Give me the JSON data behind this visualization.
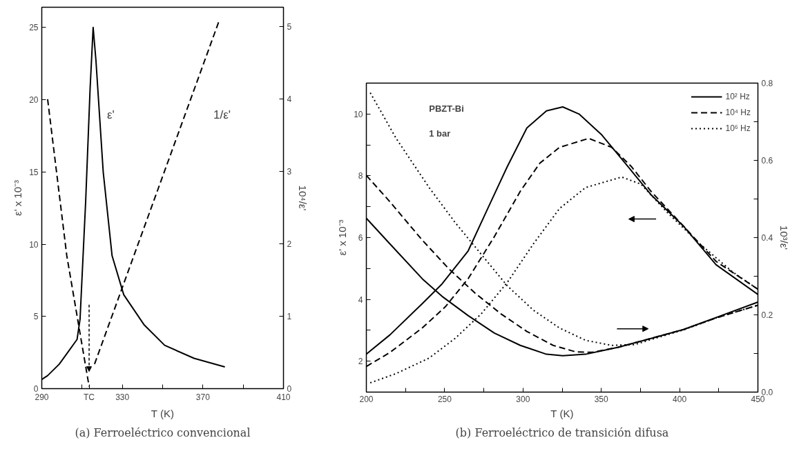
{
  "chart_data": [
    {
      "type": "line",
      "title": "(a) Ferroeléctrico convencional",
      "xlabel": "T (K)",
      "ylabel": "ε' x 10⁻³",
      "y2label": "10⁴/ε'",
      "xlim": [
        290,
        410
      ],
      "xticks": [
        290,
        {
          "value": 313.5,
          "label": "TC"
        },
        330,
        370,
        410,
        {
          "value": 310,
          "label": null
        },
        {
          "value": 350,
          "label": null
        },
        {
          "value": 390,
          "label": null
        }
      ],
      "ylim": [
        0,
        26.4
      ],
      "yticks": [
        0,
        5,
        10,
        15,
        20,
        25
      ],
      "y2lim": [
        0,
        5.27
      ],
      "y2ticks": [
        0,
        1,
        2,
        3,
        4,
        5
      ],
      "grid": false,
      "legend": false,
      "marker": "none",
      "series": [
        {
          "color": "#000000",
          "line_style": "solid",
          "x": [
            290,
            292.9,
            298.7,
            307.5,
            309,
            311.8,
            314,
            315.5,
            316.9,
            320.5,
            324.9,
            330.7,
            340.9,
            351,
            365.6,
            380.9
          ],
          "values": [
            0.64,
            0.9,
            1.7,
            3.4,
            4.8,
            13,
            20.8,
            25,
            22.7,
            15,
            9.2,
            6.5,
            4.4,
            3.0,
            2.1,
            1.5
          ]
        },
        {
          "color": "#000000",
          "line_style": "dashed",
          "axis": "y2",
          "x": [
            292.9,
            302.4,
            313.5,
            315,
            316.2,
            378
          ],
          "values": [
            4.0,
            1.84,
            0.03,
            null,
            0.34,
            5.08
          ]
        }
      ],
      "annotations": [
        "ε'",
        "1/ε'"
      ]
    },
    {
      "type": "line",
      "title": "(b) Ferroeléctrico de transición difusa",
      "xlabel": "T (K)",
      "ylabel": "ε' x 10⁻³",
      "y2label": "10³/ε'",
      "xlim": [
        200,
        450
      ],
      "xticks": [
        200,
        250,
        300,
        350,
        400,
        450,
        {
          "value": 225,
          "label": null
        },
        {
          "value": 275,
          "label": null
        },
        {
          "value": 325,
          "label": null
        },
        {
          "value": 375,
          "label": null
        },
        {
          "value": 425,
          "label": null
        }
      ],
      "ylim": [
        1,
        11
      ],
      "yticks": [
        2,
        4,
        6,
        8,
        10,
        {
          "value": 3,
          "label": null
        },
        {
          "value": 5,
          "label": null
        },
        {
          "value": 7,
          "label": null
        },
        {
          "value": 9,
          "label": null
        }
      ],
      "y2lim": [
        0,
        0.8
      ],
      "y2ticks": [
        {
          "value": 0,
          "label": "0.0"
        },
        0.2,
        0.4,
        0.6,
        0.8,
        {
          "value": 0.1,
          "label": null
        },
        {
          "value": 0.3,
          "label": null
        },
        {
          "value": 0.5,
          "label": null
        },
        {
          "value": 0.7,
          "label": null
        }
      ],
      "grid": false,
      "legend": "top right",
      "marker": "none",
      "series": [
        {
          "name": "10² Hz",
          "color": "#000000",
          "line_style": "solid",
          "x": [
            200,
            215,
            235.8,
            248.3,
            265,
            277.5,
            290,
            302.5,
            315,
            325.4,
            335.8,
            350.4,
            367,
            381.7,
            402.5,
            423.3,
            450
          ],
          "values": [
            2.23,
            2.85,
            3.87,
            4.5,
            5.57,
            6.94,
            8.3,
            9.55,
            10.1,
            10.23,
            10.0,
            9.32,
            8.3,
            7.39,
            6.37,
            5.12,
            4.16
          ]
        },
        {
          "name": "10⁴ Hz",
          "color": "#000000",
          "line_style": "dashed",
          "x": [
            200,
            215,
            235.8,
            250.4,
            265,
            281.7,
            298.3,
            310.8,
            323.3,
            342,
            356.7,
            369.2,
            381.7,
            402.5,
            423.3,
            450
          ],
          "values": [
            1.83,
            2.28,
            3.08,
            3.76,
            4.67,
            6.03,
            7.5,
            8.41,
            8.92,
            9.21,
            8.92,
            8.3,
            7.5,
            6.37,
            5.23,
            4.33
          ]
        },
        {
          "name": "10⁶ Hz",
          "color": "#000000",
          "line_style": "dotted",
          "x": [
            202.5,
            219,
            240,
            256.7,
            273.3,
            290,
            306.7,
            323.3,
            340,
            363,
            375.4,
            392,
            412.9,
            433.8,
            450
          ],
          "values": [
            1.3,
            1.6,
            2.1,
            2.74,
            3.53,
            4.55,
            5.8,
            6.94,
            7.62,
            7.96,
            7.73,
            6.82,
            5.8,
            4.89,
            4.33
          ]
        },
        {
          "color": "#000000",
          "line_style": "solid",
          "axis": "y2",
          "x": [
            200,
            215,
            235.8,
            248.3,
            265,
            281.7,
            298.3,
            315,
            325.4,
            340,
            360.8,
            381.7,
            402.5,
            423.3,
            450
          ],
          "values": [
            0.45,
            0.384,
            0.293,
            0.248,
            0.198,
            0.153,
            0.121,
            0.098,
            0.094,
            0.098,
            0.116,
            0.139,
            0.162,
            0.193,
            0.233
          ]
        },
        {
          "color": "#000000",
          "line_style": "dashed",
          "axis": "y2",
          "x": [
            200,
            215,
            235.8,
            252.5,
            269.2,
            285.8,
            302.5,
            319.2,
            333.8,
            344.2,
            360.8,
            381.7,
            402.5,
            423.3,
            450
          ],
          "values": [
            0.561,
            0.493,
            0.393,
            0.32,
            0.257,
            0.203,
            0.157,
            0.121,
            0.104,
            0.103,
            0.116,
            0.139,
            0.162,
            0.192,
            0.225
          ]
        },
        {
          "color": "#000000",
          "line_style": "dotted",
          "axis": "y2",
          "x": [
            202.5,
            219,
            240,
            256.7,
            273.3,
            290,
            306.7,
            323.3,
            340,
            356.7,
            371.3,
            381.7,
            402.5,
            423.3,
            450
          ],
          "values": [
            0.775,
            0.657,
            0.53,
            0.439,
            0.357,
            0.275,
            0.212,
            0.166,
            0.134,
            0.121,
            0.123,
            0.136,
            0.161,
            0.192,
            0.225
          ]
        }
      ],
      "annotations": [
        "PBZT-Bi",
        "1 bar"
      ]
    }
  ]
}
